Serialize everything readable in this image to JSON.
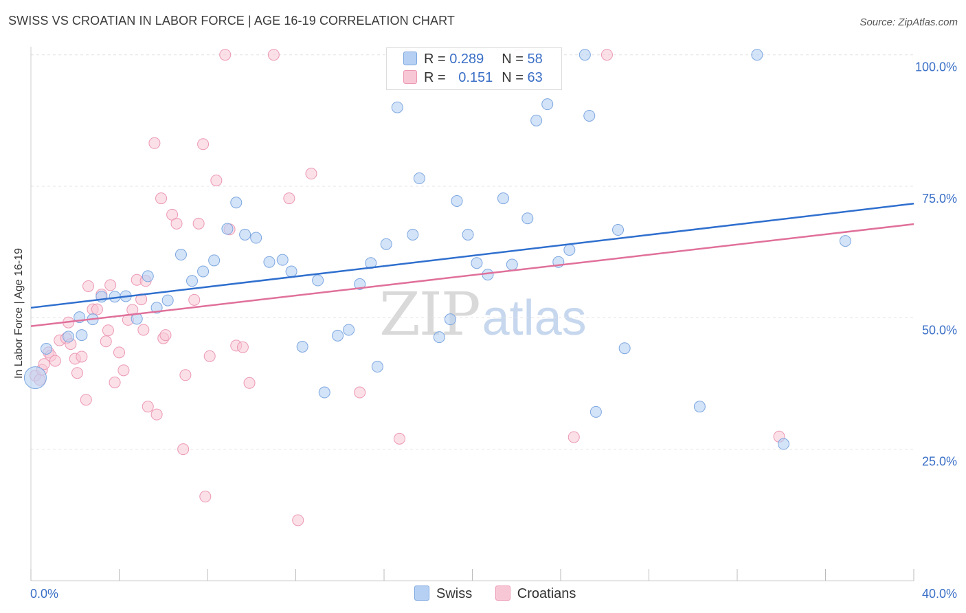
{
  "header": {
    "title": "SWISS VS CROATIAN IN LABOR FORCE | AGE 16-19 CORRELATION CHART",
    "source": "Source: ZipAtlas.com"
  },
  "legend": {
    "swiss": {
      "r_label": "R = ",
      "r_value": "0.289",
      "n_label": "N = ",
      "n_value": "58"
    },
    "croatians": {
      "r_label": "R = ",
      "r_value": "0.151",
      "n_label": "N = ",
      "n_value": "63"
    }
  },
  "bottom_legend": {
    "swiss": "Swiss",
    "croatians": "Croatians"
  },
  "watermark": {
    "zip": "ZIP",
    "atlas": "atlas"
  },
  "colors": {
    "swiss_fill": "#b6d0f3",
    "swiss_stroke": "#7da7e0",
    "swiss_line": "#2f6fce",
    "croatians_fill": "#f8c7d6",
    "croatians_stroke": "#ec98b3",
    "croatians_line": "#e0709a",
    "tick_label": "#3a6fc6",
    "grid": "#e4e4e4"
  },
  "chart_data": {
    "type": "scatter",
    "title": "SWISS VS CROATIAN IN LABOR FORCE | AGE 16-19 CORRELATION CHART",
    "ylabel": "In Labor Force | Age 16-19",
    "xlabel": "",
    "xlim": [
      0,
      40
    ],
    "ylim": [
      0,
      100
    ],
    "x_tick_labels": [
      "0.0%",
      "40.0%"
    ],
    "y_ticks": [
      25,
      50,
      75,
      100
    ],
    "y_tick_labels": [
      "25.0%",
      "50.0%",
      "75.0%",
      "100.0%"
    ],
    "grid": "horizontal dashed",
    "legend_position": "top-center",
    "series": [
      {
        "name": "Swiss",
        "r": 0.289,
        "n": 58,
        "trend": {
          "x": [
            0,
            40
          ],
          "y": [
            51.9,
            71.7
          ]
        },
        "points": [
          [
            0.2,
            38.6
          ],
          [
            0.7,
            44.1
          ],
          [
            1.7,
            46.4
          ],
          [
            2.3,
            46.7
          ],
          [
            2.2,
            50.1
          ],
          [
            2.8,
            49.7
          ],
          [
            3.2,
            54.0
          ],
          [
            3.8,
            54.0
          ],
          [
            4.3,
            54.1
          ],
          [
            4.8,
            49.8
          ],
          [
            5.3,
            57.9
          ],
          [
            5.7,
            51.9
          ],
          [
            6.2,
            53.3
          ],
          [
            6.8,
            62.0
          ],
          [
            7.3,
            57.0
          ],
          [
            7.8,
            58.8
          ],
          [
            8.3,
            60.9
          ],
          [
            8.9,
            66.9
          ],
          [
            9.3,
            71.9
          ],
          [
            9.7,
            65.8
          ],
          [
            10.2,
            65.2
          ],
          [
            10.8,
            60.6
          ],
          [
            11.4,
            61.0
          ],
          [
            11.8,
            58.8
          ],
          [
            12.3,
            44.5
          ],
          [
            13.0,
            57.1
          ],
          [
            13.3,
            35.8
          ],
          [
            13.9,
            46.6
          ],
          [
            14.4,
            47.7
          ],
          [
            14.9,
            56.4
          ],
          [
            15.4,
            60.4
          ],
          [
            15.7,
            40.7
          ],
          [
            16.1,
            64.0
          ],
          [
            16.6,
            90.0
          ],
          [
            17.3,
            65.8
          ],
          [
            17.6,
            76.5
          ],
          [
            18.5,
            46.3
          ],
          [
            19.0,
            49.7
          ],
          [
            19.3,
            72.2
          ],
          [
            19.8,
            65.8
          ],
          [
            20.2,
            60.4
          ],
          [
            20.7,
            58.2
          ],
          [
            21.4,
            72.7
          ],
          [
            21.8,
            60.1
          ],
          [
            22.5,
            68.9
          ],
          [
            22.9,
            87.5
          ],
          [
            23.4,
            90.6
          ],
          [
            23.9,
            60.6
          ],
          [
            24.4,
            62.9
          ],
          [
            25.1,
            100.0
          ],
          [
            25.3,
            88.4
          ],
          [
            25.6,
            32.1
          ],
          [
            26.6,
            66.7
          ],
          [
            26.9,
            44.2
          ],
          [
            30.3,
            33.1
          ],
          [
            32.9,
            100.0
          ],
          [
            34.1,
            26.0
          ],
          [
            36.9,
            64.6
          ]
        ]
      },
      {
        "name": "Croatians",
        "r": 0.151,
        "n": 63,
        "trend": {
          "x": [
            0,
            40
          ],
          "y": [
            48.4,
            67.8
          ]
        },
        "points": [
          [
            0.2,
            39.0
          ],
          [
            0.4,
            38.2
          ],
          [
            0.5,
            40.1
          ],
          [
            0.6,
            41.2
          ],
          [
            0.8,
            43.4
          ],
          [
            0.9,
            42.8
          ],
          [
            1.1,
            41.8
          ],
          [
            1.3,
            45.7
          ],
          [
            1.6,
            46.1
          ],
          [
            1.7,
            49.1
          ],
          [
            1.8,
            45.0
          ],
          [
            2.0,
            42.2
          ],
          [
            2.1,
            39.5
          ],
          [
            2.3,
            42.6
          ],
          [
            2.5,
            34.4
          ],
          [
            2.6,
            56.0
          ],
          [
            2.8,
            51.6
          ],
          [
            3.0,
            51.6
          ],
          [
            3.2,
            54.4
          ],
          [
            3.4,
            45.5
          ],
          [
            3.5,
            47.6
          ],
          [
            3.6,
            56.2
          ],
          [
            3.8,
            37.7
          ],
          [
            4.0,
            43.4
          ],
          [
            4.2,
            40.0
          ],
          [
            4.4,
            49.6
          ],
          [
            4.6,
            51.5
          ],
          [
            4.8,
            57.2
          ],
          [
            5.0,
            53.5
          ],
          [
            5.1,
            47.7
          ],
          [
            5.2,
            57.0
          ],
          [
            5.3,
            33.1
          ],
          [
            5.6,
            83.2
          ],
          [
            5.7,
            31.6
          ],
          [
            5.9,
            72.7
          ],
          [
            6.0,
            46.1
          ],
          [
            6.1,
            46.7
          ],
          [
            6.4,
            69.6
          ],
          [
            6.6,
            67.9
          ],
          [
            6.9,
            25.0
          ],
          [
            7.0,
            39.1
          ],
          [
            7.4,
            53.4
          ],
          [
            7.6,
            67.9
          ],
          [
            7.8,
            83.0
          ],
          [
            7.9,
            16.0
          ],
          [
            8.1,
            42.7
          ],
          [
            8.4,
            76.1
          ],
          [
            8.8,
            100.0
          ],
          [
            9.0,
            66.8
          ],
          [
            9.3,
            44.7
          ],
          [
            9.6,
            44.4
          ],
          [
            9.9,
            37.6
          ],
          [
            11.0,
            100.0
          ],
          [
            11.7,
            72.7
          ],
          [
            12.1,
            11.5
          ],
          [
            12.7,
            77.4
          ],
          [
            14.9,
            35.8
          ],
          [
            16.7,
            27.0
          ],
          [
            17.1,
            100.0
          ],
          [
            22.1,
            100.0
          ],
          [
            24.6,
            27.3
          ],
          [
            26.1,
            100.0
          ],
          [
            33.9,
            27.4
          ]
        ]
      }
    ]
  }
}
